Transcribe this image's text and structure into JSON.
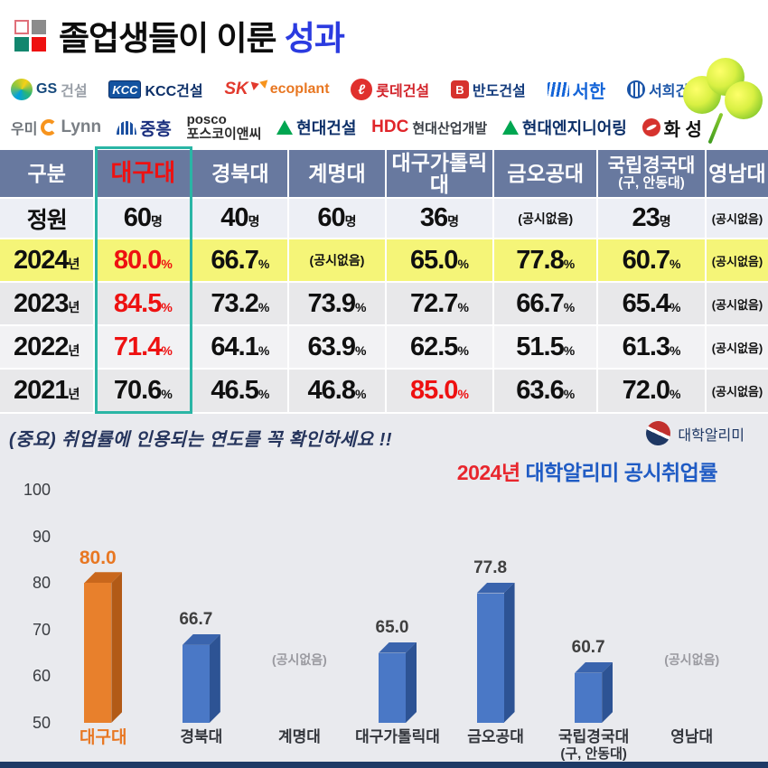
{
  "header": {
    "title_main": "졸업생들이 이룬 ",
    "title_accent": "성과"
  },
  "partners": {
    "row1": [
      {
        "name": "GS건설",
        "parts": [
          {
            "icon": "gs-swirl-icon"
          },
          {
            "text": "GS",
            "color": "#15497c",
            "bold": true
          },
          {
            "text": "건설",
            "color": "#9aa0a8",
            "bold": true
          }
        ]
      },
      {
        "name": "KCC건설",
        "parts": [
          {
            "icon": "kcc-box-icon",
            "glyph": "KCC"
          },
          {
            "text": "KCC건설",
            "color": "#0c2f68",
            "bold": true
          }
        ]
      },
      {
        "name": "SK에코플랜트",
        "parts": [
          {
            "text": "SK",
            "color": "#e23a2e",
            "bold": true,
            "italic": true,
            "size": 19
          },
          {
            "icon": "sk-butterfly-icon"
          },
          {
            "text": "ecoplant",
            "color": "#e87722",
            "bold": true
          }
        ]
      },
      {
        "name": "롯데건설",
        "parts": [
          {
            "icon": "lotte-circle-icon",
            "glyph": "ℓ"
          },
          {
            "text": "롯데건설",
            "color": "#d2232a",
            "bold": true
          }
        ]
      },
      {
        "name": "반도건설",
        "parts": [
          {
            "icon": "bando-box-icon",
            "glyph": "B"
          },
          {
            "text": "반도건설",
            "color": "#123a7c",
            "bold": true
          }
        ]
      },
      {
        "name": "서한",
        "parts": [
          {
            "icon": "seohan-wave-icon"
          },
          {
            "text": "서한",
            "color": "#1565d8",
            "bold": true,
            "size": 20
          }
        ]
      },
      {
        "name": "서희건설",
        "parts": [
          {
            "icon": "seohee-circle-icon"
          },
          {
            "text": "서희건설",
            "color": "#1b55a8",
            "bold": true
          }
        ]
      }
    ],
    "row2": [
      {
        "name": "우미린",
        "parts": [
          {
            "text": "우미",
            "color": "#6d7278",
            "bold": true
          },
          {
            "icon": "umi-c-icon"
          },
          {
            "text": "Lynn",
            "color": "#7a7f85",
            "bold": true,
            "size": 19
          }
        ]
      },
      {
        "name": "중흥",
        "parts": [
          {
            "icon": "jungheung-arch-icon"
          },
          {
            "text": "중흥",
            "color": "#1a2f7e",
            "bold": true,
            "size": 19
          }
        ]
      },
      {
        "name": "포스코이앤씨",
        "parts": [
          {
            "text": "posco\n포스코이앤씨",
            "color": "#2b2b2b",
            "bold": true,
            "pre": true
          }
        ]
      },
      {
        "name": "현대건설",
        "parts": [
          {
            "icon": "hyundai-triangle-icon"
          },
          {
            "text": "현대건설",
            "color": "#0c2f68",
            "bold": true,
            "size": 18
          }
        ]
      },
      {
        "name": "HDC현대산업개발",
        "parts": [
          {
            "text": "HDC",
            "color": "#e0252a",
            "bold": true,
            "size": 19
          },
          {
            "text": "현대산업개발",
            "color": "#3a3f46",
            "bold": true,
            "size": 15
          }
        ]
      },
      {
        "name": "현대엔지니어링",
        "parts": [
          {
            "icon": "hyundai-triangle-icon"
          },
          {
            "text": "현대엔지니어링",
            "color": "#0c2f68",
            "bold": true,
            "size": 18
          }
        ]
      },
      {
        "name": "화성",
        "parts": [
          {
            "icon": "hwasung-swirl-icon"
          },
          {
            "text": "화 성",
            "color": "#111111",
            "bold": true,
            "size": 20
          }
        ]
      }
    ]
  },
  "table": {
    "header": [
      {
        "label": "구분"
      },
      {
        "label": "대구대",
        "red": true
      },
      {
        "label": "경북대"
      },
      {
        "label": "계명대"
      },
      {
        "label": "대구가톨릭대"
      },
      {
        "label": "금오공대"
      },
      {
        "label": "국립경국대",
        "sub": "(구, 안동대)"
      },
      {
        "label": "영남대"
      }
    ],
    "rows": [
      {
        "label": {
          "v": "정원",
          "u": ""
        },
        "bg": "#edeff5",
        "cells": [
          {
            "v": "60",
            "u": "명"
          },
          {
            "v": "40",
            "u": "명"
          },
          {
            "v": "60",
            "u": "명"
          },
          {
            "v": "36",
            "u": "명"
          },
          {
            "v": "(공시없음)"
          },
          {
            "v": "23",
            "u": "명"
          },
          {
            "v": "(공시없음)"
          }
        ]
      },
      {
        "label": {
          "v": "2024",
          "u": "년"
        },
        "bg": "#f5f578",
        "cells": [
          {
            "v": "80.0",
            "u": "%",
            "red": true
          },
          {
            "v": "66.7",
            "u": "%"
          },
          {
            "v": "(공시없음)"
          },
          {
            "v": "65.0",
            "u": "%"
          },
          {
            "v": "77.8",
            "u": "%"
          },
          {
            "v": "60.7",
            "u": "%"
          },
          {
            "v": "(공시없음)"
          }
        ]
      },
      {
        "label": {
          "v": "2023",
          "u": "년"
        },
        "bg": "#e8e8ea",
        "cells": [
          {
            "v": "84.5",
            "u": "%",
            "red": true
          },
          {
            "v": "73.2",
            "u": "%"
          },
          {
            "v": "73.9",
            "u": "%"
          },
          {
            "v": "72.7",
            "u": "%"
          },
          {
            "v": "66.7",
            "u": "%"
          },
          {
            "v": "65.4",
            "u": "%"
          },
          {
            "v": "(공시없음)"
          }
        ]
      },
      {
        "label": {
          "v": "2022",
          "u": "년"
        },
        "bg": "#f2f2f4",
        "cells": [
          {
            "v": "71.4",
            "u": "%",
            "red": true
          },
          {
            "v": "64.1",
            "u": "%"
          },
          {
            "v": "63.9",
            "u": "%"
          },
          {
            "v": "62.5",
            "u": "%"
          },
          {
            "v": "51.5",
            "u": "%"
          },
          {
            "v": "61.3",
            "u": "%"
          },
          {
            "v": "(공시없음)"
          }
        ]
      },
      {
        "label": {
          "v": "2021",
          "u": "년"
        },
        "bg": "#e8e8ea",
        "cells": [
          {
            "v": "70.6",
            "u": "%"
          },
          {
            "v": "46.5",
            "u": "%"
          },
          {
            "v": "46.8",
            "u": "%"
          },
          {
            "v": "85.0",
            "u": "%",
            "red": true
          },
          {
            "v": "63.6",
            "u": "%"
          },
          {
            "v": "72.0",
            "u": "%"
          },
          {
            "v": "(공시없음)"
          }
        ]
      }
    ],
    "highlight_color": "#2ab5a5"
  },
  "footer_note": "(중요) 취업률에 인용되는 연도를 꼭 확인하세요 !!",
  "alimi": {
    "label": "대학알리미"
  },
  "chart_data": {
    "type": "bar",
    "title": "2024년 대학알리미 공시취업률",
    "title_accent": "2024년",
    "title_rest": " 대학알리미 공시취업률",
    "categories": [
      {
        "label": "대구대",
        "highlight": true
      },
      {
        "label": "경북대"
      },
      {
        "label": "계명대"
      },
      {
        "label": "대구가톨릭대"
      },
      {
        "label": "금오공대"
      },
      {
        "label": "국립경국대",
        "sub": "(구, 안동대)"
      },
      {
        "label": "영남대"
      }
    ],
    "values": [
      80.0,
      66.7,
      null,
      65.0,
      77.8,
      60.7,
      null
    ],
    "labels": [
      "80.0",
      "66.7",
      "(공시없음)",
      "65.0",
      "77.8",
      "60.7",
      "(공시없음)"
    ],
    "no_data_text": "(공시없음)",
    "ylim": [
      50,
      100
    ],
    "yticks": [
      100,
      90,
      80,
      70,
      60,
      50
    ],
    "grid": false,
    "legend": "none",
    "colors": {
      "highlight": {
        "front": "#e8802c",
        "top": "#c9671c",
        "side": "#b25a16"
      },
      "default": {
        "front": "#4a78c6",
        "top": "#3a64ad",
        "side": "#2d5394"
      }
    }
  }
}
